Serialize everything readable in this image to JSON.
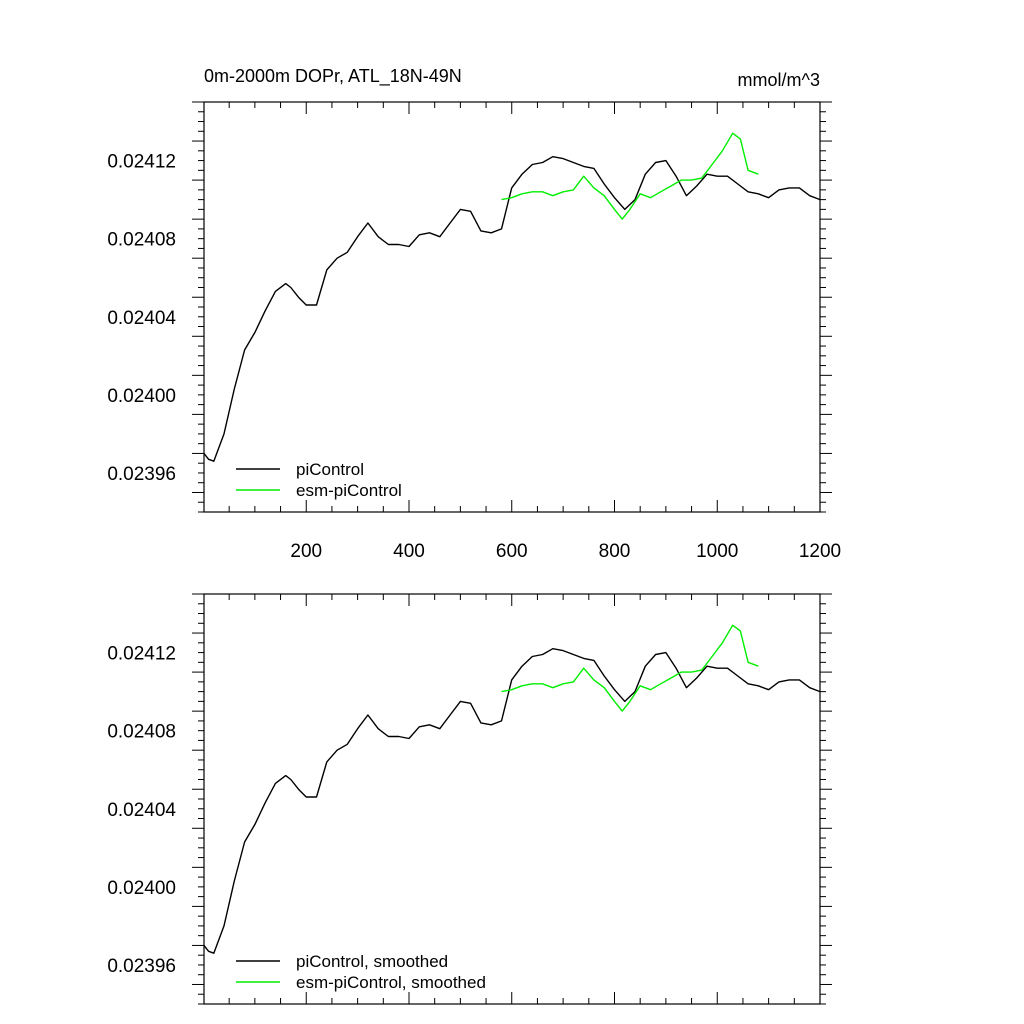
{
  "chart_data": [
    {
      "type": "line",
      "title": "0m-2000m DOPr, ATL_18N-49N",
      "units": "mmol/m^3",
      "xlim": [
        1,
        1200
      ],
      "ylim": [
        0.02394,
        0.02415
      ],
      "xticks": [
        200,
        400,
        600,
        800,
        1000,
        1200
      ],
      "xtick_labels": [
        "200",
        "400",
        "600",
        "800",
        "1000",
        "1200"
      ],
      "yticks": [
        0.02396,
        0.024,
        0.02404,
        0.02408,
        0.02412
      ],
      "ytick_labels": [
        "0.02396",
        "0.02400",
        "0.02404",
        "0.02408",
        "0.02412"
      ],
      "legend_position": "bottom-left",
      "series": [
        {
          "name": "piControl",
          "color": "#000000",
          "x": [
            1,
            10,
            20,
            40,
            60,
            80,
            100,
            120,
            140,
            160,
            170,
            185,
            200,
            220,
            240,
            260,
            280,
            300,
            320,
            340,
            360,
            380,
            400,
            420,
            440,
            460,
            480,
            500,
            520,
            540,
            560,
            580,
            600,
            620,
            640,
            660,
            680,
            700,
            720,
            740,
            760,
            780,
            800,
            820,
            840,
            860,
            880,
            900,
            920,
            940,
            960,
            980,
            1000,
            1020,
            1040,
            1060,
            1080,
            1100,
            1120,
            1140,
            1160,
            1180,
            1200
          ],
          "y": [
            0.02397,
            0.023967,
            0.023966,
            0.02398,
            0.024003,
            0.024023,
            0.024032,
            0.024043,
            0.024053,
            0.024057,
            0.024055,
            0.02405,
            0.024046,
            0.024046,
            0.024064,
            0.02407,
            0.024073,
            0.024081,
            0.024088,
            0.024081,
            0.024077,
            0.024077,
            0.024076,
            0.024082,
            0.024083,
            0.024081,
            0.024088,
            0.024095,
            0.024094,
            0.024084,
            0.024083,
            0.024085,
            0.024106,
            0.024113,
            0.024118,
            0.024119,
            0.024122,
            0.024121,
            0.024119,
            0.024117,
            0.024116,
            0.024108,
            0.024101,
            0.024095,
            0.0241,
            0.024113,
            0.024119,
            0.02412,
            0.024112,
            0.024102,
            0.024107,
            0.024113,
            0.024112,
            0.024112,
            0.024108,
            0.024104,
            0.024103,
            0.024101,
            0.024105,
            0.024106,
            0.024106,
            0.024102,
            0.0241
          ]
        },
        {
          "name": "esm-piControl",
          "color": "#00ee00",
          "x": [
            580,
            600,
            620,
            640,
            660,
            680,
            700,
            720,
            740,
            760,
            780,
            800,
            815,
            830,
            850,
            870,
            890,
            910,
            930,
            950,
            970,
            990,
            1010,
            1030,
            1045,
            1060,
            1080
          ],
          "y": [
            0.0241,
            0.024101,
            0.024103,
            0.024104,
            0.024104,
            0.024102,
            0.024104,
            0.024105,
            0.024112,
            0.024106,
            0.024102,
            0.024095,
            0.02409,
            0.024095,
            0.024103,
            0.024101,
            0.024104,
            0.024107,
            0.02411,
            0.02411,
            0.024111,
            0.024118,
            0.024125,
            0.024134,
            0.024131,
            0.024115,
            0.024113
          ]
        }
      ]
    },
    {
      "type": "line",
      "xlim": [
        1,
        1200
      ],
      "ylim": [
        0.02394,
        0.02415
      ],
      "yticks": [
        0.02396,
        0.024,
        0.02404,
        0.02408,
        0.02412
      ],
      "ytick_labels": [
        "0.02396",
        "0.02400",
        "0.02404",
        "0.02408",
        "0.02412"
      ],
      "legend_position": "bottom-left",
      "series": [
        {
          "name": "piControl, smoothed",
          "color": "#000000",
          "x": [
            1,
            10,
            20,
            40,
            60,
            80,
            100,
            120,
            140,
            160,
            170,
            185,
            200,
            220,
            240,
            260,
            280,
            300,
            320,
            340,
            360,
            380,
            400,
            420,
            440,
            460,
            480,
            500,
            520,
            540,
            560,
            580,
            600,
            620,
            640,
            660,
            680,
            700,
            720,
            740,
            760,
            780,
            800,
            820,
            840,
            860,
            880,
            900,
            920,
            940,
            960,
            980,
            1000,
            1020,
            1040,
            1060,
            1080,
            1100,
            1120,
            1140,
            1160,
            1180,
            1200
          ],
          "y": [
            0.02397,
            0.023967,
            0.023966,
            0.02398,
            0.024003,
            0.024023,
            0.024032,
            0.024043,
            0.024053,
            0.024057,
            0.024055,
            0.02405,
            0.024046,
            0.024046,
            0.024064,
            0.02407,
            0.024073,
            0.024081,
            0.024088,
            0.024081,
            0.024077,
            0.024077,
            0.024076,
            0.024082,
            0.024083,
            0.024081,
            0.024088,
            0.024095,
            0.024094,
            0.024084,
            0.024083,
            0.024085,
            0.024106,
            0.024113,
            0.024118,
            0.024119,
            0.024122,
            0.024121,
            0.024119,
            0.024117,
            0.024116,
            0.024108,
            0.024101,
            0.024095,
            0.0241,
            0.024113,
            0.024119,
            0.02412,
            0.024112,
            0.024102,
            0.024107,
            0.024113,
            0.024112,
            0.024112,
            0.024108,
            0.024104,
            0.024103,
            0.024101,
            0.024105,
            0.024106,
            0.024106,
            0.024102,
            0.0241
          ]
        },
        {
          "name": "esm-piControl, smoothed",
          "color": "#00ee00",
          "x": [
            580,
            600,
            620,
            640,
            660,
            680,
            700,
            720,
            740,
            760,
            780,
            800,
            815,
            830,
            850,
            870,
            890,
            910,
            930,
            950,
            970,
            990,
            1010,
            1030,
            1045,
            1060,
            1080
          ],
          "y": [
            0.0241,
            0.024101,
            0.024103,
            0.024104,
            0.024104,
            0.024102,
            0.024104,
            0.024105,
            0.024112,
            0.024106,
            0.024102,
            0.024095,
            0.02409,
            0.024095,
            0.024103,
            0.024101,
            0.024104,
            0.024107,
            0.02411,
            0.02411,
            0.024111,
            0.024118,
            0.024125,
            0.024134,
            0.024131,
            0.024115,
            0.024113
          ]
        }
      ]
    }
  ]
}
